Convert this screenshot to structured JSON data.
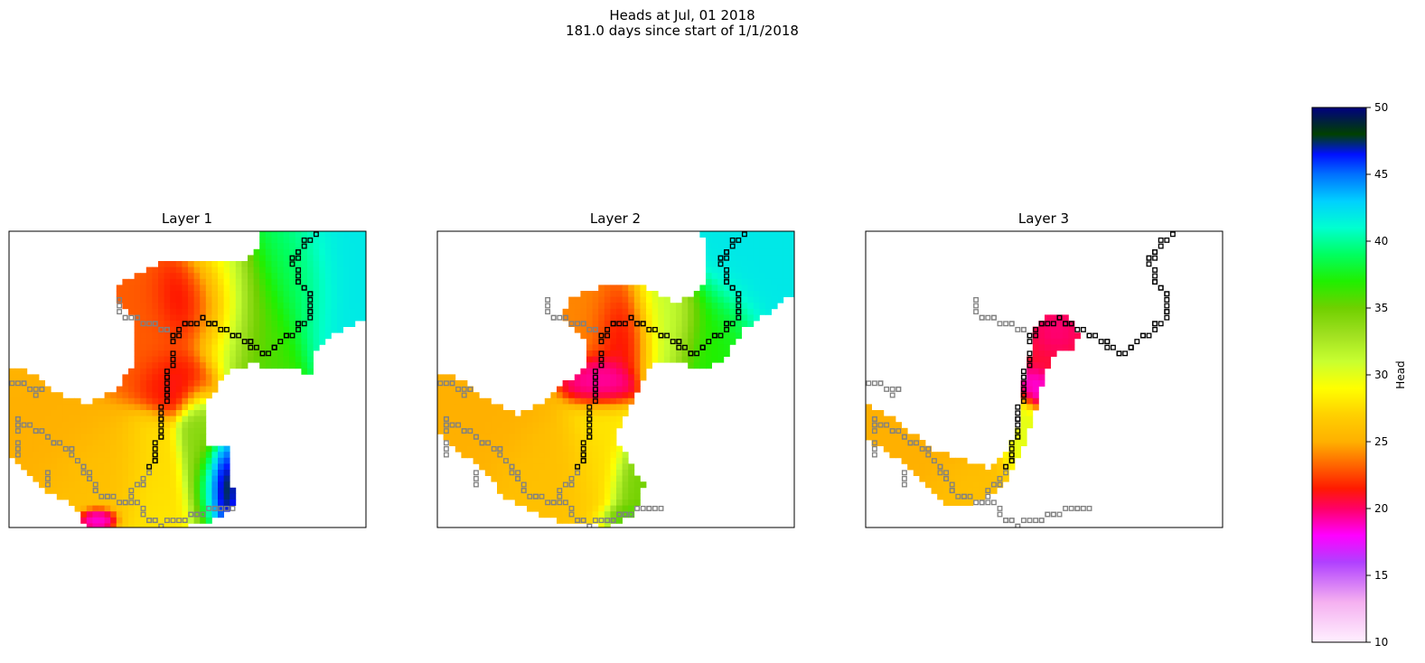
{
  "figure": {
    "title_line1": "Heads at Jul, 01 2018",
    "title_line2": "181.0 days since start of 1/1/2018"
  },
  "chart_data": [
    {
      "type": "heatmap",
      "title": "Layer 1",
      "xlabel": "",
      "ylabel": "",
      "value_range": [
        10,
        50
      ],
      "grid": false,
      "colormap": "gist_ncar_r",
      "blobs": [
        {
          "cx": 0.38,
          "cy": 0.34,
          "rx": 0.14,
          "ry": 0.18,
          "value": 23
        },
        {
          "cx": 0.52,
          "cy": 0.26,
          "rx": 0.1,
          "ry": 0.12,
          "value": 20
        },
        {
          "cx": 0.47,
          "cy": 0.5,
          "rx": 0.09,
          "ry": 0.1,
          "value": 21
        },
        {
          "cx": 0.6,
          "cy": 0.27,
          "rx": 0.1,
          "ry": 0.18,
          "value": 29
        },
        {
          "cx": 0.7,
          "cy": 0.3,
          "rx": 0.1,
          "ry": 0.2,
          "value": 36
        },
        {
          "cx": 0.8,
          "cy": 0.15,
          "rx": 0.1,
          "ry": 0.18,
          "value": 38
        },
        {
          "cx": 0.9,
          "cy": 0.12,
          "rx": 0.14,
          "ry": 0.22,
          "value": 42
        },
        {
          "cx": 0.1,
          "cy": 0.68,
          "rx": 0.16,
          "ry": 0.16,
          "value": 25
        },
        {
          "cx": 0.27,
          "cy": 0.8,
          "rx": 0.16,
          "ry": 0.14,
          "value": 26
        },
        {
          "cx": 0.4,
          "cy": 0.82,
          "rx": 0.08,
          "ry": 0.16,
          "value": 28
        },
        {
          "cx": 0.53,
          "cy": 0.72,
          "rx": 0.05,
          "ry": 0.16,
          "value": 34
        },
        {
          "cx": 0.58,
          "cy": 0.82,
          "rx": 0.05,
          "ry": 0.1,
          "value": 43
        },
        {
          "cx": 0.6,
          "cy": 0.84,
          "rx": 0.03,
          "ry": 0.08,
          "value": 50
        },
        {
          "cx": 0.25,
          "cy": 0.97,
          "rx": 0.04,
          "ry": 0.03,
          "value": 18
        }
      ]
    },
    {
      "type": "heatmap",
      "title": "Layer 2",
      "xlabel": "",
      "ylabel": "",
      "value_range": [
        10,
        50
      ],
      "grid": false,
      "colormap": "gist_ncar_r",
      "blobs": [
        {
          "cx": 0.42,
          "cy": 0.3,
          "rx": 0.13,
          "ry": 0.14,
          "value": 24
        },
        {
          "cx": 0.52,
          "cy": 0.33,
          "rx": 0.08,
          "ry": 0.12,
          "value": 20
        },
        {
          "cx": 0.45,
          "cy": 0.5,
          "rx": 0.07,
          "ry": 0.08,
          "value": 19
        },
        {
          "cx": 0.64,
          "cy": 0.3,
          "rx": 0.1,
          "ry": 0.14,
          "value": 31
        },
        {
          "cx": 0.78,
          "cy": 0.35,
          "rx": 0.1,
          "ry": 0.16,
          "value": 37
        },
        {
          "cx": 0.88,
          "cy": 0.12,
          "rx": 0.14,
          "ry": 0.22,
          "value": 42
        },
        {
          "cx": 0.1,
          "cy": 0.68,
          "rx": 0.16,
          "ry": 0.16,
          "value": 25
        },
        {
          "cx": 0.32,
          "cy": 0.8,
          "rx": 0.16,
          "ry": 0.14,
          "value": 26
        },
        {
          "cx": 0.45,
          "cy": 0.75,
          "rx": 0.08,
          "ry": 0.16,
          "value": 28
        },
        {
          "cx": 0.55,
          "cy": 0.84,
          "rx": 0.06,
          "ry": 0.12,
          "value": 35
        },
        {
          "cx": 0.56,
          "cy": 0.96,
          "rx": 0.07,
          "ry": 0.04,
          "value": 36
        }
      ]
    },
    {
      "type": "heatmap",
      "title": "Layer 3",
      "xlabel": "",
      "ylabel": "",
      "value_range": [
        10,
        50
      ],
      "grid": false,
      "colormap": "gist_ncar_r",
      "blobs": [
        {
          "cx": 0.5,
          "cy": 0.38,
          "rx": 0.09,
          "ry": 0.14,
          "value": 21
        },
        {
          "cx": 0.52,
          "cy": 0.35,
          "rx": 0.06,
          "ry": 0.08,
          "value": 19
        },
        {
          "cx": 0.47,
          "cy": 0.52,
          "rx": 0.05,
          "ry": 0.06,
          "value": 18
        },
        {
          "cx": 0.43,
          "cy": 0.7,
          "rx": 0.05,
          "ry": 0.14,
          "value": 30
        },
        {
          "cx": 0.15,
          "cy": 0.72,
          "rx": 0.18,
          "ry": 0.16,
          "value": 25
        },
        {
          "cx": 0.3,
          "cy": 0.85,
          "rx": 0.12,
          "ry": 0.1,
          "value": 26
        }
      ]
    }
  ],
  "colorbar": {
    "label": "Head",
    "min": 10,
    "max": 50,
    "ticks": [
      "10",
      "15",
      "20",
      "25",
      "30",
      "35",
      "40",
      "45",
      "50"
    ],
    "colormap": "gist_ncar_r"
  },
  "colors": {
    "river_black": "#000000",
    "river_gray": "#808080"
  }
}
